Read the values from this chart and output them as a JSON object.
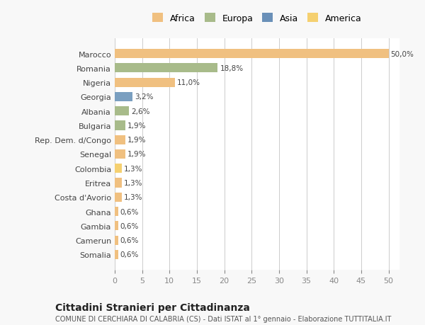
{
  "countries": [
    "Marocco",
    "Romania",
    "Nigeria",
    "Georgia",
    "Albania",
    "Bulgaria",
    "Rep. Dem. d/Congo",
    "Senegal",
    "Colombia",
    "Eritrea",
    "Costa d'Avorio",
    "Ghana",
    "Gambia",
    "Camerun",
    "Somalia"
  ],
  "values": [
    50.0,
    18.8,
    11.0,
    3.2,
    2.6,
    1.9,
    1.9,
    1.9,
    1.3,
    1.3,
    1.3,
    0.6,
    0.6,
    0.6,
    0.6
  ],
  "labels": [
    "50,0%",
    "18,8%",
    "11,0%",
    "3,2%",
    "2,6%",
    "1,9%",
    "1,9%",
    "1,9%",
    "1,3%",
    "1,3%",
    "1,3%",
    "0,6%",
    "0,6%",
    "0,6%",
    "0,6%"
  ],
  "colors": [
    "#f0c080",
    "#a8bb8a",
    "#f0c080",
    "#7a9fc0",
    "#a8bb8a",
    "#a8bb8a",
    "#f0c080",
    "#f0c080",
    "#f5d070",
    "#f0c080",
    "#f0c080",
    "#f0c080",
    "#f0c080",
    "#f0c080",
    "#f0c080"
  ],
  "legend_labels": [
    "Africa",
    "Europa",
    "Asia",
    "America"
  ],
  "legend_colors": [
    "#f0c080",
    "#a8bb8a",
    "#6a90b8",
    "#f5d070"
  ],
  "title": "Cittadini Stranieri per Cittadinanza",
  "subtitle": "COMUNE DI CERCHIARA DI CALABRIA (CS) - Dati ISTAT al 1° gennaio - Elaborazione TUTTITALIA.IT",
  "xlim": [
    0,
    52
  ],
  "xticks": [
    0,
    5,
    10,
    15,
    20,
    25,
    30,
    35,
    40,
    45,
    50
  ],
  "bg_color": "#f8f8f8",
  "bar_bg_color": "#ffffff"
}
